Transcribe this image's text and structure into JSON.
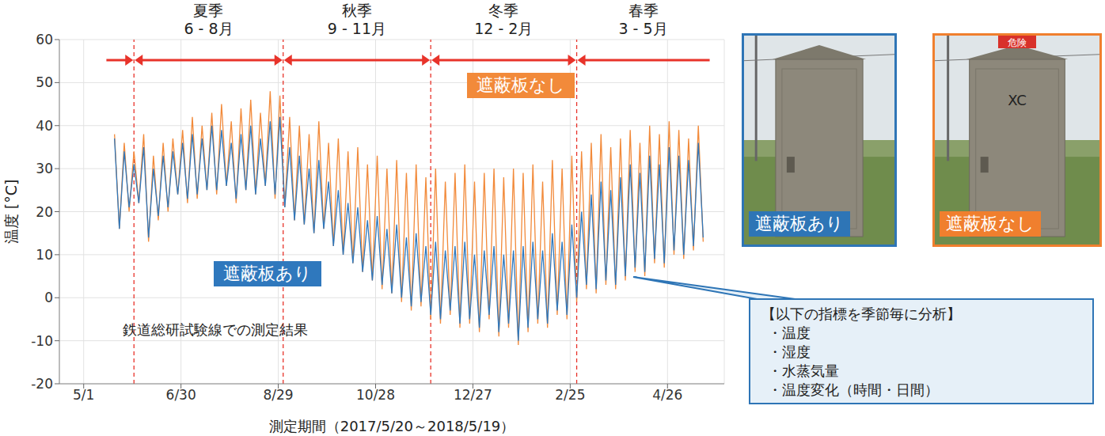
{
  "chart_data": {
    "type": "line",
    "x_label": "測定期間（2017/5/20～2018/5/19）",
    "y_label": "温度 [°C]",
    "annotation": "鉄道総研試験線での測定結果",
    "x": [
      19,
      22,
      25,
      28,
      31,
      34,
      37,
      40,
      43,
      46,
      49,
      52,
      55,
      58,
      61,
      64,
      67,
      70,
      73,
      76,
      79,
      82,
      85,
      88,
      91,
      94,
      97,
      100,
      103,
      106,
      109,
      112,
      115,
      118,
      121,
      124,
      127,
      130,
      133,
      136,
      139,
      142,
      145,
      148,
      151,
      154,
      157,
      160,
      163,
      166,
      169,
      172,
      175,
      178,
      181,
      184,
      187,
      190,
      193,
      196,
      199,
      202,
      205,
      208,
      211,
      214,
      217,
      220,
      223,
      226,
      229,
      232,
      235,
      238,
      241,
      244,
      247,
      250,
      253,
      256,
      259,
      262,
      265,
      268,
      271,
      274,
      277,
      280,
      283,
      286,
      289,
      292,
      295,
      298,
      301,
      304,
      307,
      310,
      313,
      316,
      319,
      322,
      325,
      328,
      331,
      334,
      337,
      340,
      343,
      346,
      349,
      352,
      355,
      358,
      361,
      364,
      367,
      370,
      373,
      376,
      379,
      382
    ],
    "xlim": [
      -15,
      395
    ],
    "xticks": [
      {
        "value": 0,
        "label": "5/1"
      },
      {
        "value": 60,
        "label": "6/30"
      },
      {
        "value": 120,
        "label": "8/29"
      },
      {
        "value": 180,
        "label": "10/28"
      },
      {
        "value": 240,
        "label": "12/27"
      },
      {
        "value": 300,
        "label": "2/25"
      },
      {
        "value": 360,
        "label": "4/26"
      }
    ],
    "ylim": [
      -20,
      60
    ],
    "yticks": [
      -20,
      -10,
      0,
      10,
      20,
      30,
      40,
      50,
      60
    ],
    "grid": true,
    "series": [
      {
        "name": "遮蔽板なし",
        "color": "#f28a3a",
        "values": [
          38,
          16,
          36,
          20,
          34,
          22,
          38,
          13,
          33,
          18,
          36,
          20,
          37,
          24,
          39,
          22,
          42,
          23,
          40,
          25,
          43,
          24,
          45,
          26,
          41,
          22,
          44,
          25,
          46,
          24,
          43,
          26,
          48,
          23,
          47,
          21,
          42,
          18,
          40,
          17,
          38,
          15,
          41,
          16,
          36,
          12,
          37,
          10,
          34,
          8,
          35,
          6,
          31,
          4,
          33,
          2,
          30,
          1,
          32,
          -1,
          29,
          -3,
          31,
          -2,
          28,
          -5,
          30,
          -6,
          27,
          -4,
          29,
          -7,
          31,
          -6,
          27,
          -8,
          29,
          -5,
          30,
          -9,
          28,
          -7,
          30,
          -11,
          29,
          -8,
          31,
          -6,
          27,
          -7,
          32,
          -4,
          30,
          -5,
          33,
          -1,
          34,
          2,
          36,
          1,
          38,
          3,
          35,
          2,
          37,
          4,
          39,
          6,
          36,
          5,
          40,
          8,
          38,
          7,
          41,
          10,
          39,
          9,
          37,
          11,
          40,
          13
        ]
      },
      {
        "name": "遮蔽板あり",
        "color": "#2f78bd",
        "values": [
          37,
          16,
          34,
          21,
          31,
          22,
          35,
          14,
          30,
          19,
          33,
          21,
          34,
          24,
          36,
          23,
          38,
          24,
          37,
          25,
          40,
          25,
          39,
          26,
          36,
          23,
          38,
          25,
          40,
          24,
          37,
          26,
          41,
          24,
          42,
          21,
          35,
          18,
          33,
          17,
          30,
          15,
          32,
          16,
          27,
          12,
          25,
          10,
          22,
          8,
          21,
          6,
          18,
          4,
          19,
          3,
          16,
          1,
          17,
          0,
          14,
          -2,
          15,
          -1,
          12,
          -4,
          13,
          -5,
          11,
          -3,
          12,
          -6,
          13,
          -5,
          10,
          -7,
          11,
          -4,
          12,
          -8,
          10,
          -6,
          11,
          -10,
          12,
          -7,
          13,
          -5,
          11,
          -6,
          15,
          -3,
          13,
          -4,
          17,
          0,
          20,
          3,
          24,
          2,
          27,
          4,
          25,
          3,
          28,
          5,
          31,
          7,
          29,
          6,
          33,
          9,
          31,
          8,
          35,
          11,
          33,
          10,
          32,
          12,
          36,
          14
        ]
      }
    ],
    "seasons": [
      {
        "name": "夏季",
        "months": "6 - 8月",
        "start": 31,
        "end": 123
      },
      {
        "name": "秋季",
        "months": "9 - 11月",
        "start": 123,
        "end": 214
      },
      {
        "name": "冬季",
        "months": "12 - 2月",
        "start": 214,
        "end": 304
      },
      {
        "name": "春季",
        "months": "3 - 5月",
        "start": 304,
        "end": 386
      }
    ],
    "season_arrow_start": 14
  },
  "photos": [
    {
      "label": "遮蔽板あり",
      "color": "#2e75b6"
    },
    {
      "label": "遮蔽板なし",
      "color": "#f07f2e",
      "sign": "危険",
      "marking": "XC"
    }
  ],
  "callout": {
    "title": "【以下の指標を季節毎に分析】",
    "items": [
      "・温度",
      "・湿度",
      "・水蒸気量",
      "・温度変化（時間・日間）"
    ]
  }
}
